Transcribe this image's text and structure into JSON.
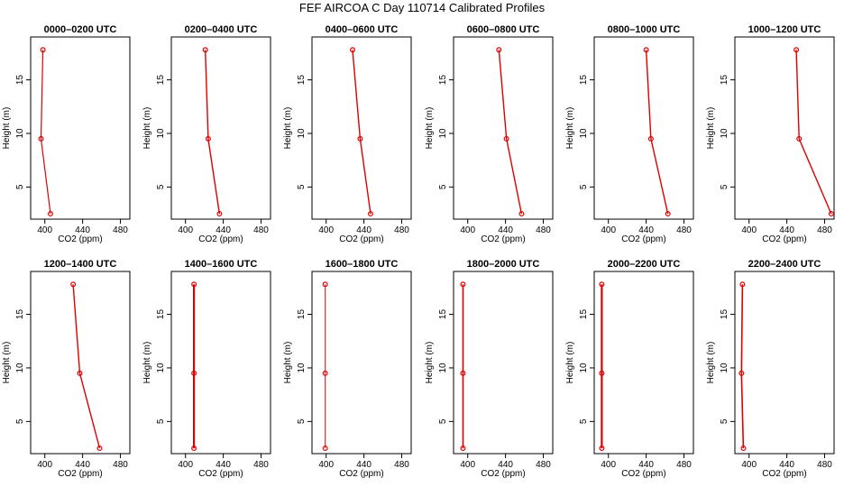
{
  "chart_data": {
    "type": "line",
    "title": "FEF AIRCOA C  Day 110714  Calibrated Profiles",
    "xlabel": "CO2 (ppm)",
    "ylabel": "Height (m)",
    "xlim": [
      385,
      490
    ],
    "ylim": [
      2,
      19
    ],
    "xticks": [
      400,
      440,
      480
    ],
    "yticks": [
      5,
      10,
      15
    ],
    "heights": [
      2.5,
      9.5,
      17.8
    ],
    "line_color": "#dd0000",
    "panels": [
      {
        "title": "0000–0200 UTC",
        "co2": [
          406,
          396,
          398
        ],
        "line_width": 1.2
      },
      {
        "title": "0200–0400 UTC",
        "co2": [
          436,
          424,
          421
        ],
        "line_width": 1.4
      },
      {
        "title": "0400–0600 UTC",
        "co2": [
          447,
          436,
          428
        ],
        "line_width": 1.4
      },
      {
        "title": "0600–0800 UTC",
        "co2": [
          457,
          441,
          433
        ],
        "line_width": 1.4
      },
      {
        "title": "0800–1000 UTC",
        "co2": [
          463,
          445,
          440
        ],
        "line_width": 1.4
      },
      {
        "title": "1000–1200 UTC",
        "co2": [
          487,
          453,
          450
        ],
        "line_width": 1.4
      },
      {
        "title": "1200–1400 UTC",
        "co2": [
          458,
          437,
          430
        ],
        "line_width": 1.4
      },
      {
        "title": "1400–1600 UTC",
        "co2": [
          409,
          409,
          409
        ],
        "line_width": 2.2
      },
      {
        "title": "1600–1800 UTC",
        "co2": [
          399,
          399,
          399
        ],
        "line_width": 1.0
      },
      {
        "title": "1800–2000 UTC",
        "co2": [
          395,
          395,
          395
        ],
        "line_width": 1.6
      },
      {
        "title": "2000–2200 UTC",
        "co2": [
          393,
          393,
          393
        ],
        "line_width": 2.2
      },
      {
        "title": "2200–2400 UTC",
        "co2": [
          394,
          392,
          393
        ],
        "line_width": 1.6
      }
    ]
  }
}
